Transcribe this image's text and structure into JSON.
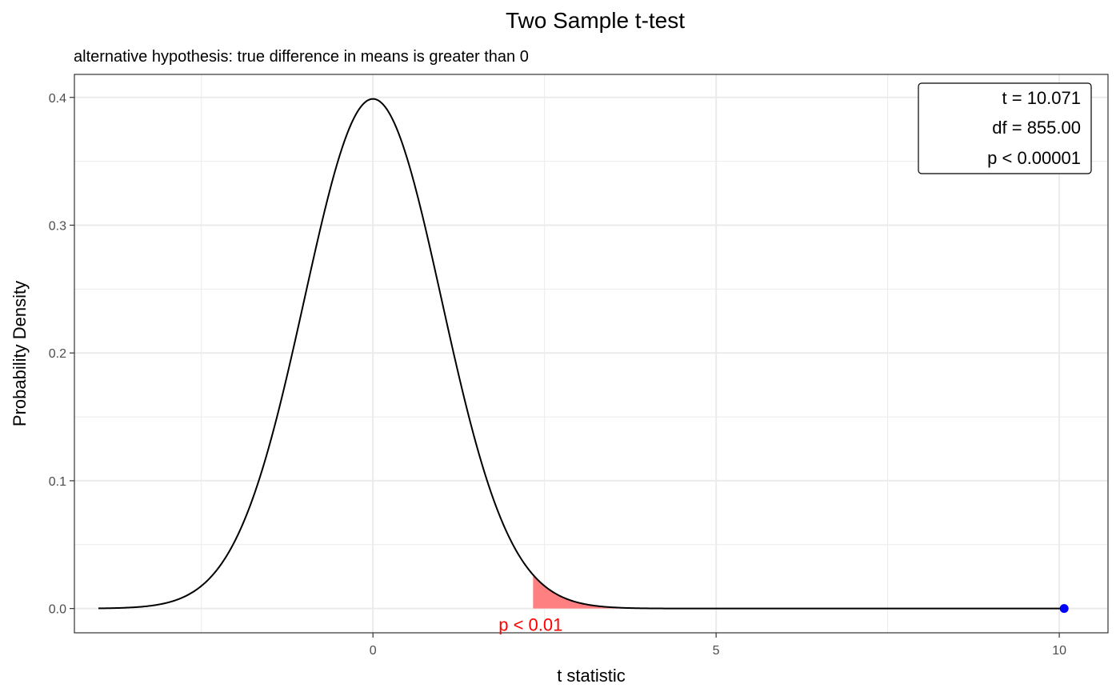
{
  "chart_data": {
    "type": "line",
    "title": "Two Sample t-test",
    "subtitle": "alternative hypothesis: true difference in means is greater than 0",
    "xlabel": "t statistic",
    "ylabel": "Probability Density",
    "xlim": [
      -4.35,
      10.71
    ],
    "ylim": [
      -0.019,
      0.418
    ],
    "x_ticks": [
      0,
      5,
      10
    ],
    "x_tick_labels": [
      "0",
      "5",
      "10"
    ],
    "y_ticks": [
      0.0,
      0.1,
      0.2,
      0.3,
      0.4
    ],
    "y_tick_labels": [
      "0.0",
      "0.1",
      "0.2",
      "0.3",
      "0.4"
    ],
    "grid": true,
    "df": 855,
    "curve_range": [
      -4.0,
      10.071
    ],
    "critical_value": 2.333,
    "shade_to": 4.0,
    "observed_t": 10.071,
    "stats_box": [
      "t = 10.071",
      "df = 855.00",
      "p < 0.00001"
    ],
    "legend_placement": "top-right",
    "p_annotation": "p < 0.01",
    "colors": {
      "curve": "#000000",
      "shade": "#ff8080",
      "point": "#0000ff",
      "annotation": "#ff0000",
      "grid": "#ebebeb",
      "panel_border": "#333333"
    }
  }
}
